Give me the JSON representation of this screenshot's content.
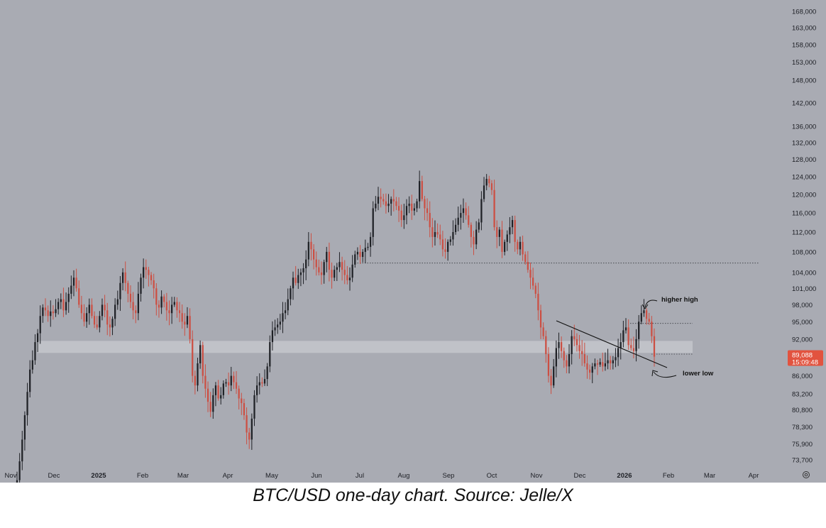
{
  "chart_data": {
    "type": "candlestick",
    "title": "",
    "x_tick_labels": [
      "Nov",
      "Dec",
      "2025",
      "Feb",
      "Mar",
      "Apr",
      "May",
      "Jun",
      "Jul",
      "Aug",
      "Sep",
      "Oct",
      "Nov",
      "Dec",
      "2026",
      "Feb",
      "Mar",
      "Apr"
    ],
    "bold_x_ticks": [
      "2025",
      "2026"
    ],
    "y_tick_labels": [
      "168,000",
      "163,000",
      "158,000",
      "153,000",
      "148,000",
      "142,000",
      "136,000",
      "132,000",
      "128,000",
      "124,000",
      "120,000",
      "116,000",
      "112,000",
      "108,000",
      "104,000",
      "101,000",
      "98,000",
      "95,000",
      "92,000",
      "86,000",
      "83,200",
      "80,800",
      "78,300",
      "75,900",
      "73,700"
    ],
    "y_scale": "log",
    "ylim": [
      72000,
      172000
    ],
    "price_badge": {
      "price": "89,088",
      "timer": "15:09:48",
      "value": 89088
    },
    "horizontal_levels": [
      {
        "label": "resistance",
        "value": 105800
      },
      {
        "label": "higher high level",
        "value": 94700
      },
      {
        "label": "lower low level",
        "value": 89500
      }
    ],
    "support_zone": [
      89700,
      91700
    ],
    "annotations": [
      {
        "text": "higher high"
      },
      {
        "text": "lower low"
      }
    ],
    "colors": {
      "up": "#1f2126",
      "down": "#cc4f43",
      "badge": "#e2533f",
      "background": "#a9abb3"
    },
    "closes": [
      71000,
      73500,
      76500,
      80000,
      83500,
      87000,
      88500,
      91500,
      93000,
      96000,
      97500,
      97000,
      96000,
      96800,
      96500,
      97200,
      98500,
      99000,
      97000,
      98500,
      100000,
      101500,
      103000,
      101000,
      98000,
      96500,
      95000,
      96500,
      98000,
      96000,
      94500,
      94000,
      96000,
      98000,
      97000,
      94500,
      94000,
      95500,
      98000,
      99000,
      102000,
      104000,
      102000,
      100000,
      98500,
      97000,
      96500,
      100000,
      103000,
      105000,
      104500,
      103500,
      102500,
      101000,
      98000,
      97500,
      99500,
      98500,
      97000,
      96500,
      98000,
      98500,
      97000,
      96500,
      95000,
      94500,
      96000,
      92000,
      86000,
      84500,
      88000,
      91000,
      86000,
      84000,
      82000,
      80500,
      83000,
      84500,
      82500,
      83000,
      84800,
      85000,
      84500,
      86000,
      85000,
      84000,
      82500,
      81800,
      80000,
      77500,
      76500,
      79500,
      83000,
      84500,
      85000,
      84800,
      85500,
      87500,
      91500,
      93500,
      94000,
      94500,
      95000,
      96500,
      97000,
      99000,
      101000,
      103000,
      102000,
      103500,
      104000,
      104800,
      106500,
      110000,
      108500,
      106500,
      105000,
      104000,
      103500,
      106000,
      108000,
      104500,
      103000,
      104500,
      105000,
      106000,
      104500,
      103500,
      102500,
      103000,
      105500,
      107500,
      108000,
      107000,
      108000,
      108800,
      109000,
      111000,
      117000,
      118000,
      119500,
      119000,
      118500,
      117500,
      118000,
      119000,
      118500,
      117500,
      116500,
      114500,
      115500,
      117500,
      118000,
      116500,
      117000,
      118500,
      123000,
      119000,
      117000,
      116000,
      113000,
      111000,
      112000,
      111500,
      110500,
      108500,
      108000,
      110000,
      110500,
      112000,
      113500,
      115000,
      116000,
      117000,
      115500,
      113500,
      111000,
      109500,
      112500,
      114000,
      119000,
      122000,
      123500,
      122500,
      121000,
      113000,
      111000,
      112500,
      108000,
      110000,
      111500,
      113000,
      114500,
      110000,
      108500,
      110000,
      107500,
      106000,
      104500,
      103000,
      101500,
      100000,
      97000,
      94000,
      92500,
      89500,
      86000,
      84500,
      87500,
      90500,
      91500,
      90000,
      88500,
      87500,
      89500,
      92500,
      92000,
      91000,
      90000,
      89500,
      88000,
      87000,
      86500,
      87500,
      88000,
      87800,
      88200,
      87500,
      88000,
      88500,
      88000,
      88500,
      89000,
      90500,
      91500,
      93500,
      94000,
      91000,
      90500,
      90000,
      92000,
      95000,
      96500,
      97000,
      95500,
      95000,
      92500,
      89088
    ]
  },
  "caption": "BTC/USD one-day chart. Source: Jelle/X"
}
